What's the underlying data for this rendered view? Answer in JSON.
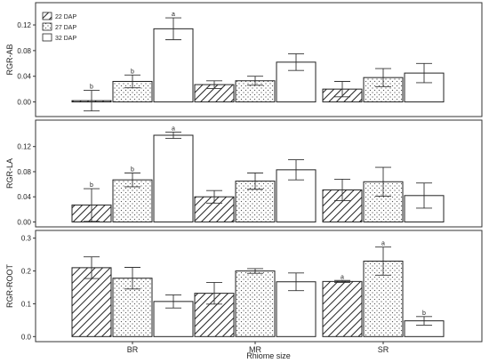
{
  "chart_data": {
    "type": "bar",
    "xlabel": "Rhiome size",
    "categories": [
      "BR",
      "MR",
      "SR"
    ],
    "legend": [
      "22 DAP",
      "27 DAP",
      "32 DAP"
    ],
    "legend_position": "top-left",
    "grid": false,
    "panels": [
      {
        "ylabel": "RGR-AB",
        "ylim": [
          -0.02,
          0.145
        ],
        "yticks": [
          0.0,
          0.04,
          0.08,
          0.12
        ],
        "ytick_labels": [
          "0.00",
          "0.04",
          "0.08",
          "0.12"
        ],
        "series": [
          {
            "name": "22 DAP",
            "values": [
              0.002,
              0.027,
              0.02
            ],
            "errors": [
              0.016,
              0.006,
              0.012
            ],
            "sig": [
              "b",
              "",
              ""
            ]
          },
          {
            "name": "27 DAP",
            "values": [
              0.032,
              0.033,
              0.038
            ],
            "errors": [
              0.01,
              0.007,
              0.014
            ],
            "sig": [
              "b",
              "",
              ""
            ]
          },
          {
            "name": "32 DAP",
            "values": [
              0.114,
              0.062,
              0.045
            ],
            "errors": [
              0.017,
              0.013,
              0.015
            ],
            "sig": [
              "a",
              "",
              ""
            ]
          }
        ]
      },
      {
        "ylabel": "RGR-LA",
        "ylim": [
          -0.005,
          0.155
        ],
        "yticks": [
          0.0,
          0.04,
          0.08,
          0.12
        ],
        "ytick_labels": [
          "0.00",
          "0.04",
          "0.08",
          "0.12"
        ],
        "series": [
          {
            "name": "22 DAP",
            "values": [
              0.027,
              0.04,
              0.051
            ],
            "errors": [
              0.026,
              0.01,
              0.017
            ],
            "sig": [
              "b",
              "",
              ""
            ]
          },
          {
            "name": "27 DAP",
            "values": [
              0.067,
              0.065,
              0.064
            ],
            "errors": [
              0.011,
              0.013,
              0.023
            ],
            "sig": [
              "b",
              "",
              ""
            ]
          },
          {
            "name": "32 DAP",
            "values": [
              0.138,
              0.083,
              0.042
            ],
            "errors": [
              0.005,
              0.016,
              0.02
            ],
            "sig": [
              "a",
              "",
              ""
            ]
          }
        ]
      },
      {
        "ylabel": "RGR-ROOT",
        "ylim": [
          -0.01,
          0.31
        ],
        "yticks": [
          0.0,
          0.1,
          0.2,
          0.3
        ],
        "ytick_labels": [
          "0.0",
          "0.1",
          "0.2",
          "0.3"
        ],
        "series": [
          {
            "name": "22 DAP",
            "values": [
              0.21,
              0.132,
              0.168
            ],
            "errors": [
              0.033,
              0.033,
              0.003
            ],
            "sig": [
              "",
              "",
              "a"
            ]
          },
          {
            "name": "27 DAP",
            "values": [
              0.178,
              0.2,
              0.23
            ],
            "errors": [
              0.033,
              0.007,
              0.043
            ],
            "sig": [
              "",
              "",
              "a"
            ]
          },
          {
            "name": "32 DAP",
            "values": [
              0.107,
              0.167,
              0.048
            ],
            "errors": [
              0.02,
              0.027,
              0.013
            ],
            "sig": [
              "",
              "",
              "b"
            ]
          }
        ]
      }
    ]
  }
}
